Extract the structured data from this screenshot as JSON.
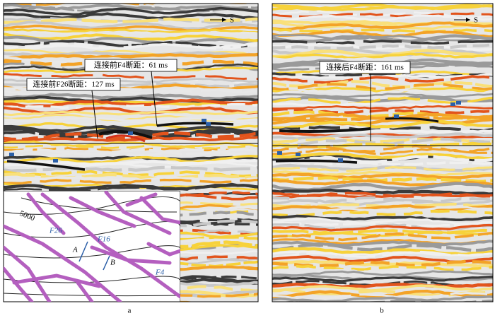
{
  "panels": [
    {
      "label": "a",
      "direction": "S",
      "callouts": [
        "连接前F4断距：61 ms",
        "连接前F26断距：127 ms"
      ],
      "inset": {
        "contour": "5000",
        "faults": [
          "F26",
          "F16",
          "F4"
        ],
        "points": [
          "A",
          "B"
        ]
      }
    },
    {
      "label": "b",
      "direction": "S",
      "callouts": [
        "连接后F4断距：161 ms"
      ]
    }
  ]
}
